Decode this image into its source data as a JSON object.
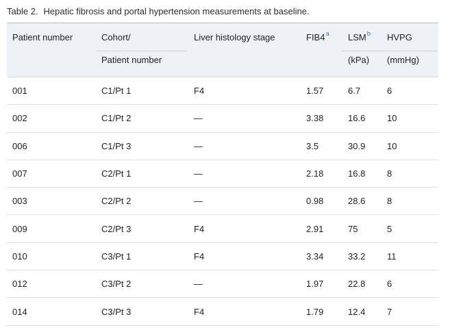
{
  "caption": {
    "label": "Table 2.",
    "text": "Hepatic fibrosis and portal hypertension measurements at baseline."
  },
  "table": {
    "columns": [
      {
        "line1": "Patient number",
        "line2": ""
      },
      {
        "line1": "Cohort/",
        "line2": "Patient number"
      },
      {
        "line1": "Liver histology stage",
        "line2": ""
      },
      {
        "line1": "FIB4",
        "sup": "a",
        "line2": ""
      },
      {
        "line1": "LSM",
        "sup": "b",
        "line2": "(kPa)"
      },
      {
        "line1": "HVPG",
        "line2": "(mmHg)"
      }
    ],
    "rows": [
      [
        "001",
        "C1/Pt 1",
        "F4",
        "1.57",
        "6.7",
        "6"
      ],
      [
        "002",
        "C1/Pt 2",
        "—",
        "3.38",
        "16.6",
        "10"
      ],
      [
        "006",
        "C1/Pt 3",
        "—",
        "3.5",
        "30.9",
        "10"
      ],
      [
        "007",
        "C2/Pt 1",
        "—",
        "2.18",
        "16.8",
        "8"
      ],
      [
        "003",
        "C2/Pt 2",
        "—",
        "0.98",
        "28.6",
        "8"
      ],
      [
        "009",
        "C2/Pt 3",
        "F4",
        "2.91",
        "75",
        "5"
      ],
      [
        "010",
        "C3/Pt 1",
        "F4",
        "3.34",
        "33.2",
        "11"
      ],
      [
        "012",
        "C3/Pt 2",
        "—",
        "1.97",
        "22.8",
        "6"
      ],
      [
        "014",
        "C3/Pt 3",
        "F4",
        "1.79",
        "12.4",
        "7"
      ]
    ]
  },
  "colors": {
    "header_background": "#eef1f6",
    "header_top_border": "#b8bec9",
    "header_rule": "#c9cedb",
    "row_border": "#dcdee0",
    "footnote_marker": "#2d7ec1",
    "text": "#1f1f1f"
  }
}
